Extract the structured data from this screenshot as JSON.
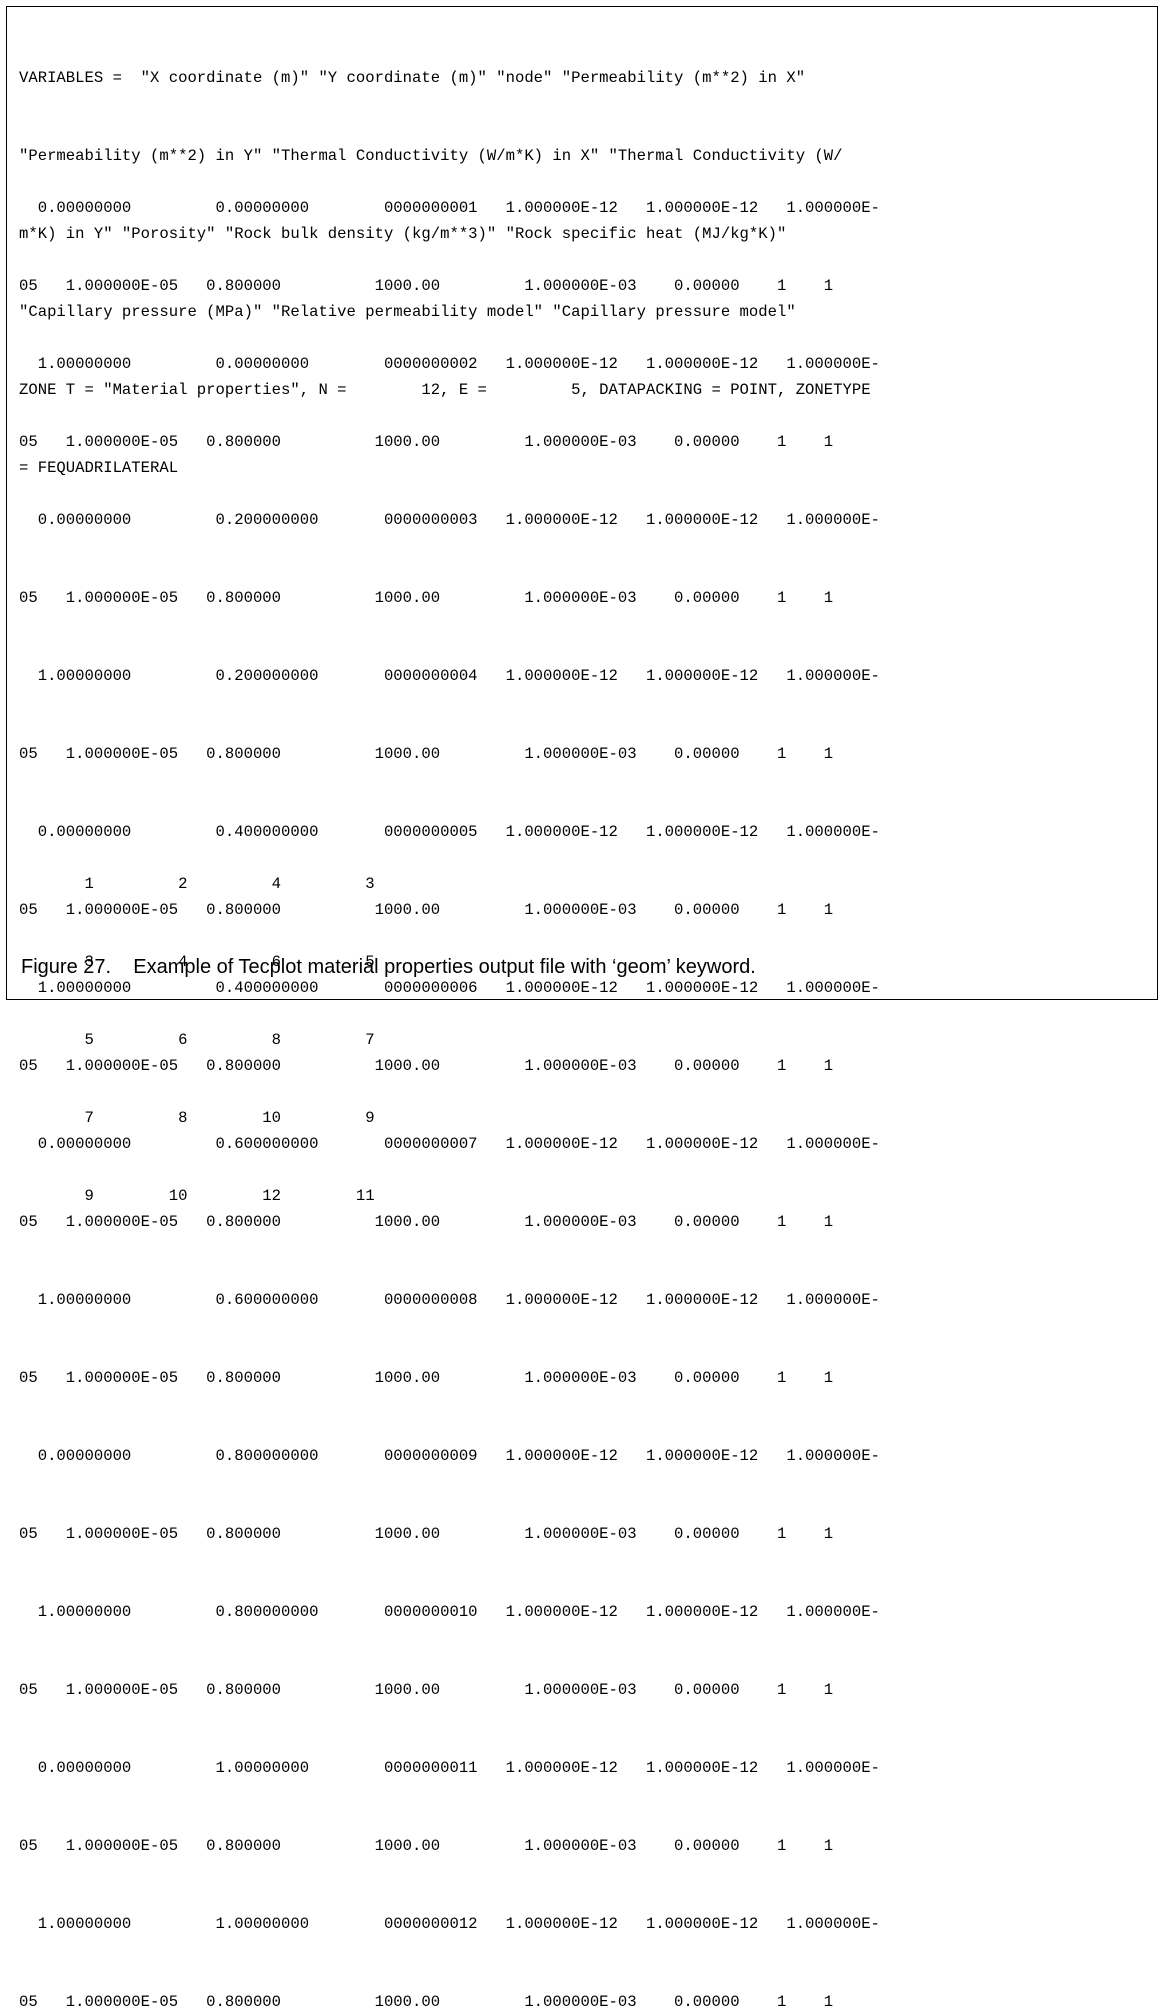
{
  "header_lines": [
    "VARIABLES =  \"X coordinate (m)\" \"Y coordinate (m)\" \"node\" \"Permeability (m**2) in X\"",
    "\"Permeability (m**2) in Y\" \"Thermal Conductivity (W/m*K) in X\" \"Thermal Conductivity (W/",
    "m*K) in Y\" \"Porosity\" \"Rock bulk density (kg/m**3)\" \"Rock specific heat (MJ/kg*K)\"",
    "\"Capillary pressure (MPa)\" \"Relative permeability model\" \"Capillary pressure model\"",
    "ZONE T = \"Material properties\", N =        12, E =         5, DATAPACKING = POINT, ZONETYPE",
    "= FEQUADRILATERAL"
  ],
  "data_rows": [
    {
      "line1": "  0.00000000         0.00000000        0000000001   1.000000E-12   1.000000E-12   1.000000E-",
      "line2": "05   1.000000E-05   0.800000          1000.00         1.000000E-03    0.00000    1    1"
    },
    {
      "line1": "  1.00000000         0.00000000        0000000002   1.000000E-12   1.000000E-12   1.000000E-",
      "line2": "05   1.000000E-05   0.800000          1000.00         1.000000E-03    0.00000    1    1"
    },
    {
      "line1": "  0.00000000         0.200000000       0000000003   1.000000E-12   1.000000E-12   1.000000E-",
      "line2": "05   1.000000E-05   0.800000          1000.00         1.000000E-03    0.00000    1    1"
    },
    {
      "line1": "  1.00000000         0.200000000       0000000004   1.000000E-12   1.000000E-12   1.000000E-",
      "line2": "05   1.000000E-05   0.800000          1000.00         1.000000E-03    0.00000    1    1"
    },
    {
      "line1": "  0.00000000         0.400000000       0000000005   1.000000E-12   1.000000E-12   1.000000E-",
      "line2": "05   1.000000E-05   0.800000          1000.00         1.000000E-03    0.00000    1    1"
    },
    {
      "line1": "  1.00000000         0.400000000       0000000006   1.000000E-12   1.000000E-12   1.000000E-",
      "line2": "05   1.000000E-05   0.800000          1000.00         1.000000E-03    0.00000    1    1"
    },
    {
      "line1": "  0.00000000         0.600000000       0000000007   1.000000E-12   1.000000E-12   1.000000E-",
      "line2": "05   1.000000E-05   0.800000          1000.00         1.000000E-03    0.00000    1    1"
    },
    {
      "line1": "  1.00000000         0.600000000       0000000008   1.000000E-12   1.000000E-12   1.000000E-",
      "line2": "05   1.000000E-05   0.800000          1000.00         1.000000E-03    0.00000    1    1"
    },
    {
      "line1": "  0.00000000         0.800000000       0000000009   1.000000E-12   1.000000E-12   1.000000E-",
      "line2": "05   1.000000E-05   0.800000          1000.00         1.000000E-03    0.00000    1    1"
    },
    {
      "line1": "  1.00000000         0.800000000       0000000010   1.000000E-12   1.000000E-12   1.000000E-",
      "line2": "05   1.000000E-05   0.800000          1000.00         1.000000E-03    0.00000    1    1"
    },
    {
      "line1": "  0.00000000         1.00000000        0000000011   1.000000E-12   1.000000E-12   1.000000E-",
      "line2": "05   1.000000E-05   0.800000          1000.00         1.000000E-03    0.00000    1    1"
    },
    {
      "line1": "  1.00000000         1.00000000        0000000012   1.000000E-12   1.000000E-12   1.000000E-",
      "line2": "05   1.000000E-05   0.800000          1000.00         1.000000E-03    0.00000    1    1"
    }
  ],
  "connectivity_lines": [
    "       1         2         4         3",
    "       3         4         6         5",
    "       5         6         8         7",
    "       7         8        10         9",
    "       9        10        12        11"
  ],
  "caption": "Figure 27.    Example of Tecplot material properties output file with ‘geom’ keyword."
}
